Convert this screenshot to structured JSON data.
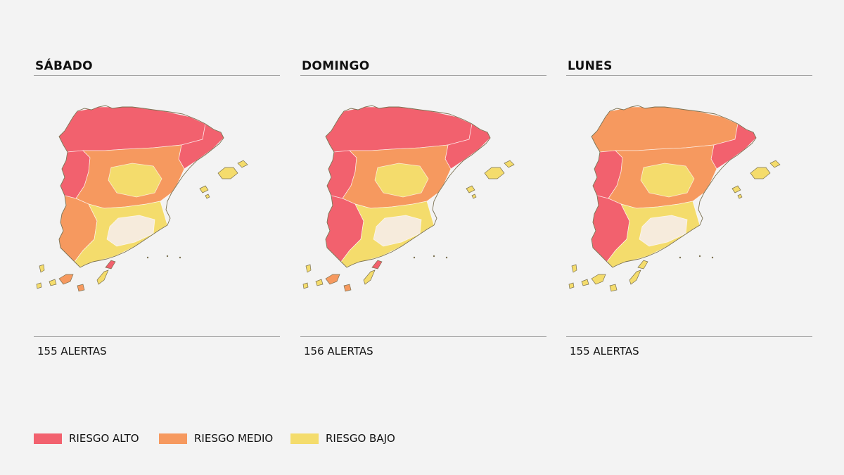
{
  "colors": {
    "alto": "#f2616e",
    "medio": "#f6995f",
    "bajo": "#f4dc6c",
    "sin_riesgo": "#f6ebdc",
    "outline": "#7a7050"
  },
  "panels": [
    {
      "title": "SÁBADO",
      "count_label": "155 ALERTAS",
      "map_regions": {
        "north": "alto",
        "west": "alto",
        "northeast": "alto",
        "center": "medio",
        "center_core": "bajo",
        "east": "bajo",
        "south": "bajo",
        "south_core": "sin_riesgo",
        "southwest": "medio",
        "lanzarote": "alto",
        "canarias_central": "medio",
        "canarias_other": "bajo",
        "baleares": "bajo"
      }
    },
    {
      "title": "DOMINGO",
      "count_label": "156 ALERTAS",
      "map_regions": {
        "north": "alto",
        "west": "alto",
        "northeast": "alto",
        "center": "medio",
        "center_core": "bajo",
        "east": "alto",
        "south": "bajo",
        "south_core": "sin_riesgo",
        "southwest": "alto",
        "lanzarote": "alto",
        "canarias_central": "medio",
        "canarias_other": "bajo",
        "baleares": "bajo"
      }
    },
    {
      "title": "LUNES",
      "count_label": "155 ALERTAS",
      "map_regions": {
        "north": "medio",
        "west": "alto",
        "northeast": "alto",
        "center": "medio",
        "center_core": "bajo",
        "east": "medio",
        "south": "bajo",
        "south_core": "sin_riesgo",
        "southwest": "alto",
        "lanzarote": "bajo",
        "canarias_central": "bajo",
        "canarias_other": "bajo",
        "baleares": "bajo"
      }
    }
  ],
  "legend": [
    {
      "label": "RIESGO ALTO",
      "color_key": "alto"
    },
    {
      "label": "RIESGO MEDIO",
      "color_key": "medio"
    },
    {
      "label": "RIESGO BAJO",
      "color_key": "bajo"
    }
  ]
}
